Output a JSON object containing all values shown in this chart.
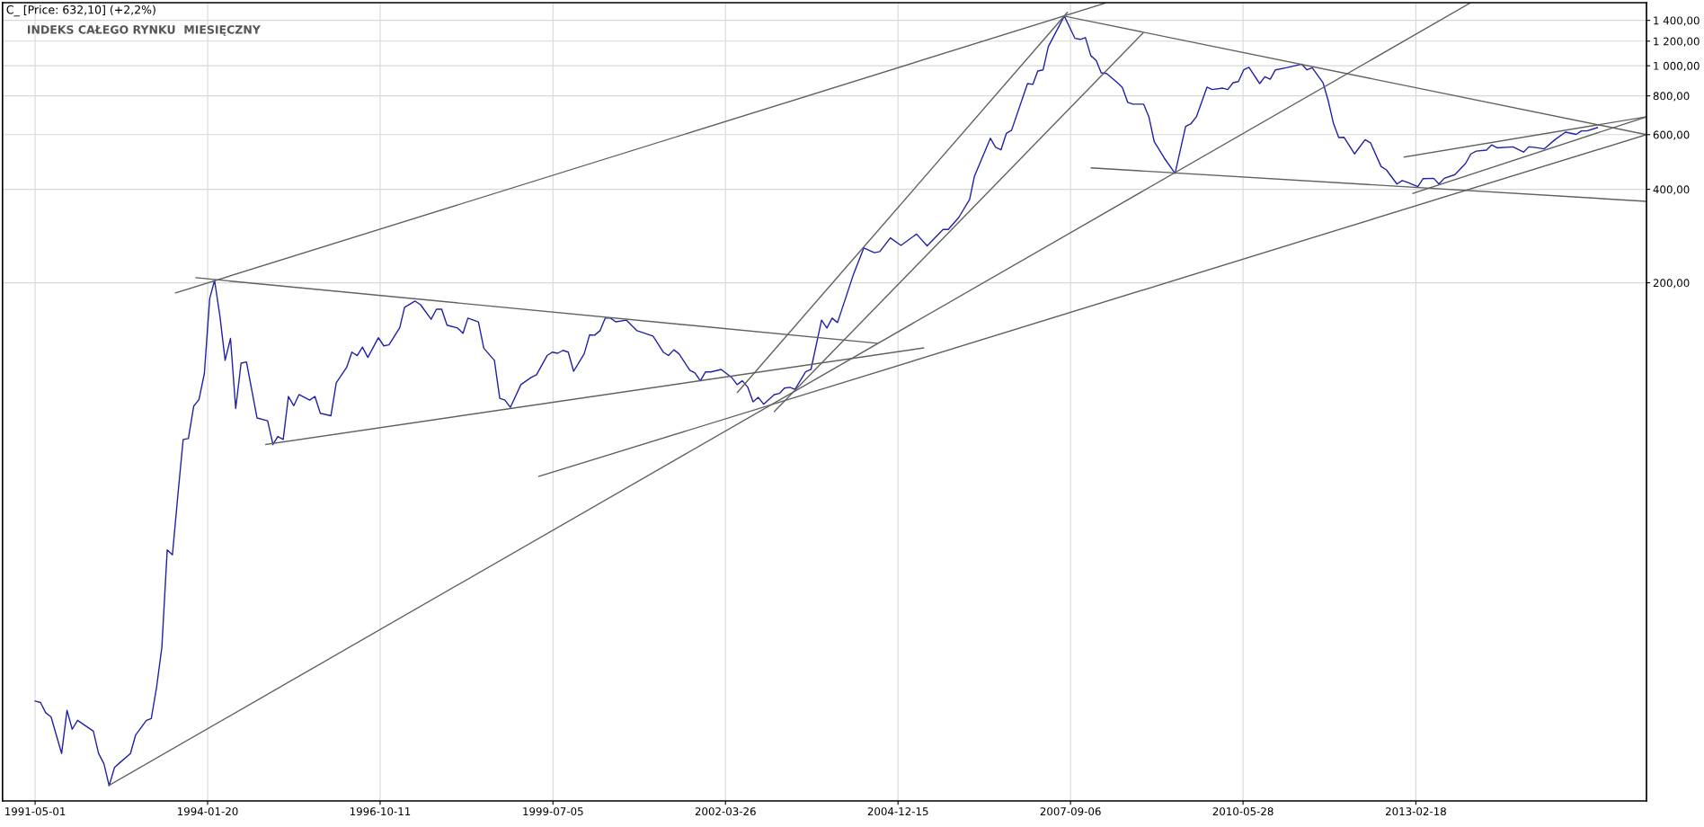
{
  "chart_data": {
    "type": "line",
    "title": "INDEKS CAŁEGO RYNKU  MIESIĘCZNY",
    "annotations": [
      "C_ [Price: 632,10] (+2,2%)"
    ],
    "log": "y",
    "grid": true,
    "xlim": [
      "1990-10-25",
      "2016-10-10"
    ],
    "xticks": [
      {
        "value": "1991-05-01",
        "label": "1991-05-01"
      },
      {
        "value": "1994-01-20",
        "label": "1994-01-20"
      },
      {
        "value": "1996-10-11",
        "label": "1996-10-11"
      },
      {
        "value": "1999-07-05",
        "label": "1999-07-05"
      },
      {
        "value": "2002-03-26",
        "label": "2002-03-26"
      },
      {
        "value": "2004-12-15",
        "label": "2004-12-15"
      },
      {
        "value": "2007-09-06",
        "label": "2007-09-06"
      },
      {
        "value": "2010-05-28",
        "label": "2010-05-28"
      },
      {
        "value": "2013-02-18",
        "label": "2013-02-18"
      }
    ],
    "ylim": [
      4.29,
      1596
    ],
    "yticks": [
      {
        "value": 200,
        "label": "200,00"
      },
      {
        "value": 400,
        "label": "400,00"
      },
      {
        "value": 600,
        "label": "600,00"
      },
      {
        "value": 800,
        "label": "800,00"
      },
      {
        "value": 1000,
        "label": "1 000,00"
      },
      {
        "value": 1200,
        "label": "1 200,00"
      },
      {
        "value": 1400,
        "label": "1 400,00"
      }
    ],
    "series": [
      {
        "color": "#2020a8",
        "x": [
          "1991-05",
          "1991-06",
          "1991-07",
          "1991-08",
          "1991-10",
          "1991-11",
          "1991-12",
          "1992-01",
          "1992-04",
          "1992-05",
          "1992-06",
          "1992-07",
          "1992-08",
          "1992-09",
          "1992-11",
          "1992-12",
          "1993-02",
          "1993-03",
          "1993-04",
          "1993-05",
          "1993-06",
          "1993-07",
          "1993-08",
          "1993-09",
          "1993-10",
          "1993-11",
          "1993-12",
          "1994-01",
          "1994-02",
          "1994-03",
          "1994-04",
          "1994-05",
          "1994-06",
          "1994-07",
          "1994-08",
          "1994-09",
          "1994-11",
          "1995-01",
          "1995-02",
          "1995-03",
          "1995-04",
          "1995-05",
          "1995-06",
          "1995-07",
          "1995-09",
          "1995-10",
          "1995-11",
          "1996-01",
          "1996-02",
          "1996-04",
          "1996-05",
          "1996-06",
          "1996-07",
          "1996-08",
          "1996-10",
          "1996-11",
          "1996-12",
          "1997-02",
          "1997-03",
          "1997-05",
          "1997-06",
          "1997-08",
          "1997-09",
          "1997-10",
          "1997-11",
          "1998-01",
          "1998-02",
          "1998-03",
          "1998-05",
          "1998-06",
          "1998-08",
          "1998-09",
          "1998-10",
          "1998-11",
          "1999-01",
          "1999-03",
          "1999-04",
          "1999-06",
          "1999-07",
          "1999-08",
          "1999-09",
          "1999-10",
          "1999-11",
          "2000-01",
          "2000-02",
          "2000-03",
          "2000-04",
          "2000-05",
          "2000-06",
          "2000-07",
          "2000-09",
          "2000-11",
          "2001-02",
          "2001-04",
          "2001-05",
          "2001-06",
          "2001-07",
          "2001-09",
          "2001-10",
          "2001-11",
          "2001-12",
          "2002-01",
          "2002-03",
          "2002-05",
          "2002-06",
          "2002-07",
          "2002-08",
          "2002-09",
          "2002-10",
          "2002-11",
          "2003-01",
          "2003-02",
          "2003-03",
          "2003-04",
          "2003-05",
          "2003-07",
          "2003-08",
          "2003-10",
          "2003-11",
          "2003-12",
          "2004-01",
          "2004-04",
          "2004-06",
          "2004-08",
          "2004-09",
          "2004-11",
          "2005-01",
          "2005-04",
          "2005-06",
          "2005-09",
          "2005-10",
          "2005-12",
          "2006-02",
          "2006-03",
          "2006-06",
          "2006-07",
          "2006-08",
          "2006-09",
          "2006-10",
          "2007-01",
          "2007-02",
          "2007-03",
          "2007-04",
          "2007-05",
          "2007-08",
          "2007-10",
          "2007-11",
          "2007-12",
          "2008-01",
          "2008-02",
          "2008-03",
          "2008-04",
          "2008-06",
          "2008-07",
          "2008-08",
          "2008-09",
          "2008-11",
          "2008-12",
          "2009-01",
          "2009-03",
          "2009-05",
          "2009-07",
          "2009-08",
          "2009-09",
          "2009-11",
          "2009-12",
          "2010-02",
          "2010-03",
          "2010-04",
          "2010-05",
          "2010-06",
          "2010-07",
          "2010-09",
          "2010-10",
          "2010-11",
          "2010-12",
          "2011-02",
          "2011-05",
          "2011-06",
          "2011-07",
          "2011-09",
          "2011-10",
          "2011-11",
          "2011-12",
          "2012-01",
          "2012-03",
          "2012-05",
          "2012-06",
          "2012-08",
          "2012-09",
          "2012-11",
          "2012-12",
          "2013-01",
          "2013-03",
          "2013-04",
          "2013-06",
          "2013-07",
          "2013-08",
          "2013-10",
          "2013-12",
          "2014-01",
          "2014-02",
          "2014-04",
          "2014-05",
          "2014-06",
          "2014-09",
          "2014-11",
          "2014-12",
          "2015-01",
          "2015-03",
          "2015-05",
          "2015-07",
          "2015-09",
          "2015-10",
          "2015-11",
          "2016-01"
        ],
        "values": [
          9.0,
          8.9,
          8.25,
          8.0,
          6.1,
          8.4,
          7.3,
          7.8,
          7.2,
          6.1,
          5.65,
          4.8,
          5.5,
          5.7,
          6.1,
          7.0,
          7.8,
          7.9,
          10.0,
          13.4,
          27.6,
          26.6,
          41.2,
          62.6,
          63,
          80.2,
          84.1,
          101.9,
          178,
          203.8,
          156,
          112.5,
          132.4,
          78.7,
          110.2,
          111.2,
          73.4,
          71.9,
          60.3,
          64.0,
          62.6,
          86.1,
          80.4,
          87.3,
          83.8,
          86.1,
          76.0,
          74.6,
          95.3,
          106.8,
          119.6,
          116.6,
          124.1,
          115.0,
          133.1,
          125.3,
          126.2,
          143.3,
          166.8,
          174.6,
          170.0,
          152.6,
          164.4,
          164.4,
          146.1,
          143.0,
          137.5,
          153.9,
          149.7,
          123.1,
          112.5,
          84.9,
          83.8,
          79.4,
          94.0,
          99.1,
          101.1,
          116.6,
          119.6,
          118.6,
          121.2,
          119.6,
          103.8,
          118.1,
          135.9,
          135.6,
          140.2,
          153.9,
          153.9,
          149.7,
          151.6,
          140.2,
          134.7,
          119.6,
          116.6,
          121.7,
          118.1,
          104.6,
          102.5,
          96.7,
          103.3,
          103.3,
          105.2,
          99.1,
          94.0,
          96.7,
          92.3,
          82.7,
          85.5,
          81.3,
          87.3,
          88.1,
          91.6,
          92.1,
          90.8,
          103.3,
          105.2,
          151.6,
          143.0,
          153.9,
          148.9,
          212,
          259,
          250,
          252,
          279,
          264,
          287,
          263,
          297,
          297,
          325,
          371,
          441,
          584,
          546,
          536,
          606,
          620,
          876,
          871,
          962,
          970,
          1152,
          1446,
          1226,
          1216,
          1232,
          1078,
          1040,
          949,
          944,
          883,
          852,
          762,
          752,
          752,
          685,
          569,
          503,
          450,
          638,
          651,
          685,
          853,
          838,
          847,
          838,
          882,
          889,
          970,
          988,
          876,
          922,
          905,
          970,
          985,
          1012,
          970,
          985,
          883,
          773,
          651,
          587,
          588,
          520,
          578,
          565,
          474,
          462,
          416,
          427,
          421,
          408,
          433,
          434,
          416,
          434,
          446,
          484,
          520,
          531,
          535,
          556,
          544,
          548,
          527,
          548,
          546,
          540,
          578,
          611,
          601,
          617,
          617,
          632.1
        ]
      },
      {
        "type": "line",
        "color": "#606060",
        "x": [
          "1993-07-19",
          "2008-03-23"
        ],
        "values": [
          185.6,
          1590
        ]
      },
      {
        "type": "line",
        "color": "#606060",
        "x": [
          "1993-11-14",
          "2004-08-15"
        ],
        "values": [
          207.6,
          127.8
        ]
      },
      {
        "type": "line",
        "color": "#606060",
        "x": [
          "1994-12-22",
          "2005-05-11"
        ],
        "values": [
          60.3,
          123.4
        ]
      },
      {
        "type": "line",
        "color": "#606060",
        "x": [
          "1992-06-29",
          "2013-12-26"
        ],
        "values": [
          4.81,
          1590
        ]
      },
      {
        "type": "line",
        "color": "#606060",
        "x": [
          "1999-04-15",
          "2016-10-10"
        ],
        "values": [
          47.6,
          600
        ]
      },
      {
        "type": "line",
        "color": "#606060",
        "x": [
          "2002-06-03",
          "2007-08-19"
        ],
        "values": [
          88.7,
          1485
        ]
      },
      {
        "type": "line",
        "color": "#606060",
        "x": [
          "2003-01-02",
          "2008-10-28"
        ],
        "values": [
          77.0,
          1274
        ]
      },
      {
        "type": "line",
        "color": "#606060",
        "x": [
          "2007-07-29",
          "2016-10-10"
        ],
        "values": [
          1446,
          600
        ]
      },
      {
        "type": "line",
        "color": "#606060",
        "x": [
          "2008-01-04",
          "2016-10-10"
        ],
        "values": [
          469,
          366
        ]
      },
      {
        "type": "line",
        "color": "#606060",
        "x": [
          "2012-12-13",
          "2016-10-10"
        ],
        "values": [
          508,
          685
        ]
      },
      {
        "type": "line",
        "color": "#606060",
        "x": [
          "2013-02-01",
          "2016-10-10"
        ],
        "values": [
          388,
          685
        ]
      }
    ]
  }
}
